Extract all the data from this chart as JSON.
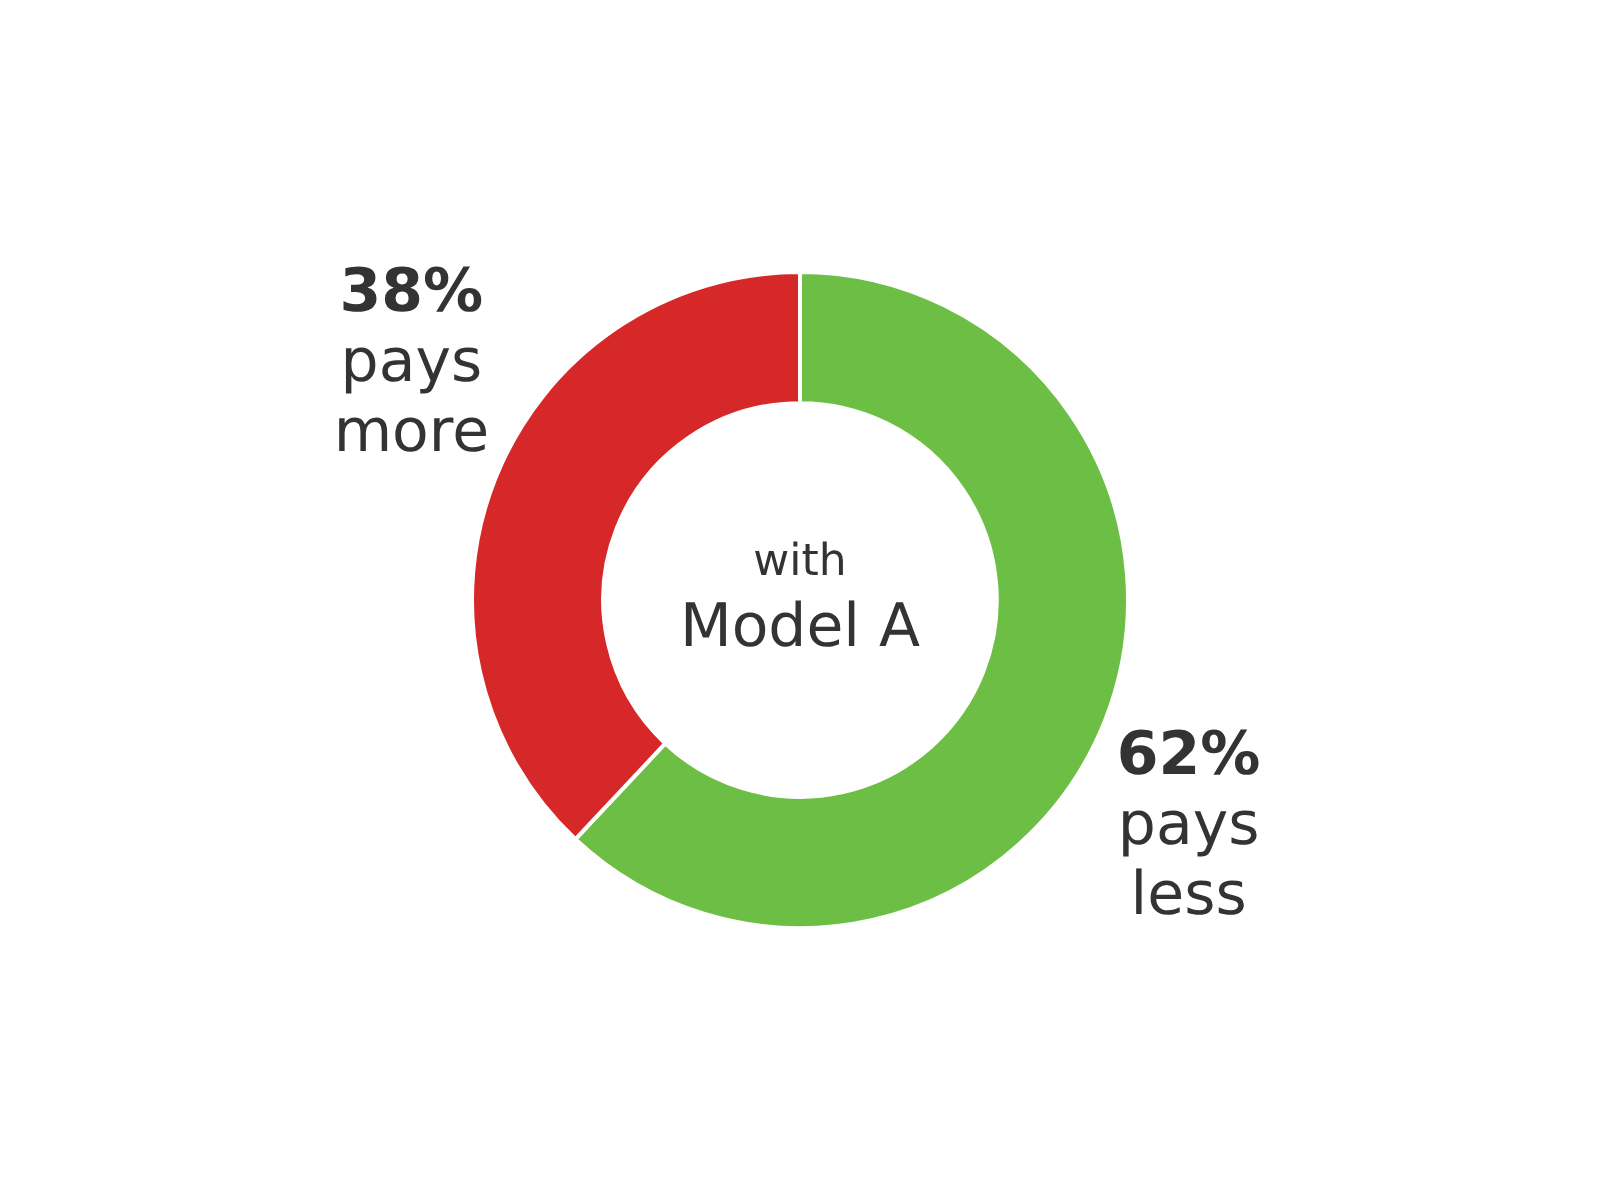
{
  "chart_data": {
    "type": "donut",
    "categories": [
      "pays less",
      "pays more"
    ],
    "values": [
      62,
      38
    ],
    "colors": [
      "#6cbf44",
      "#d62828"
    ],
    "value_labels": [
      "62%",
      "38%"
    ],
    "annotations": [
      "with",
      "Model A"
    ],
    "legend": false
  }
}
